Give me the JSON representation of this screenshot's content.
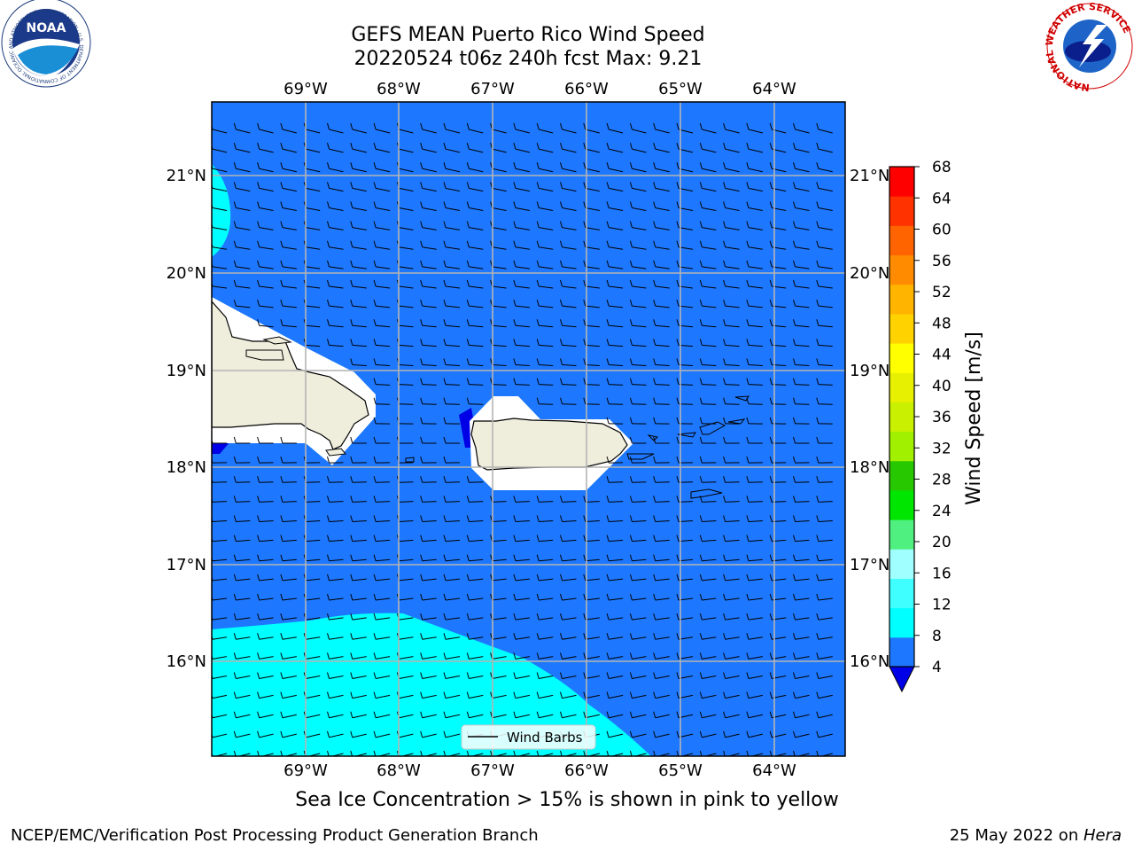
{
  "title": {
    "line1": "GEFS MEAN Puerto Rico Wind Speed",
    "line2": "20220524 t06z 240h fcst   Max: 9.21"
  },
  "axes": {
    "lon_labels": [
      "69°W",
      "68°W",
      "67°W",
      "66°W",
      "65°W",
      "64°W"
    ],
    "lat_labels": [
      "21°N",
      "20°N",
      "19°N",
      "18°N",
      "17°N",
      "16°N"
    ]
  },
  "legend": {
    "label": "Wind Barbs"
  },
  "colorbar": {
    "label": "Wind Speed [m/s]",
    "ticks": [
      "68",
      "64",
      "60",
      "56",
      "52",
      "48",
      "44",
      "40",
      "36",
      "32",
      "28",
      "24",
      "20",
      "16",
      "12",
      "8",
      "4"
    ],
    "colors": [
      "#0000e6",
      "#1e78ff",
      "#00ffff",
      "#40ffff",
      "#a0ffff",
      "#50f080",
      "#00e600",
      "#28c800",
      "#a0f000",
      "#c8f000",
      "#e6f000",
      "#ffff00",
      "#ffd200",
      "#ffb400",
      "#ff8c00",
      "#ff6400",
      "#ff3200",
      "#ff0000"
    ]
  },
  "colors": {
    "ocean_main": "#1e78ff",
    "ocean_light": "#00ffff",
    "land": "#efeddc",
    "grid": "#b4b4b4"
  },
  "caption": "Sea Ice Concentration > 15% is shown in pink to yellow",
  "footer": {
    "left": "NCEP/EMC/Verification Post Processing Product Generation Branch",
    "date": "25 May 2022 on ",
    "machine": "Hera"
  },
  "logos": {
    "left": "NOAA",
    "left_ring": "NATIONAL OCEANIC AND ATMOSPHERIC ADMINISTRATION · U.S. DEPARTMENT OF COMMERCE",
    "right": "NATIONAL WEATHER SERVICE"
  }
}
